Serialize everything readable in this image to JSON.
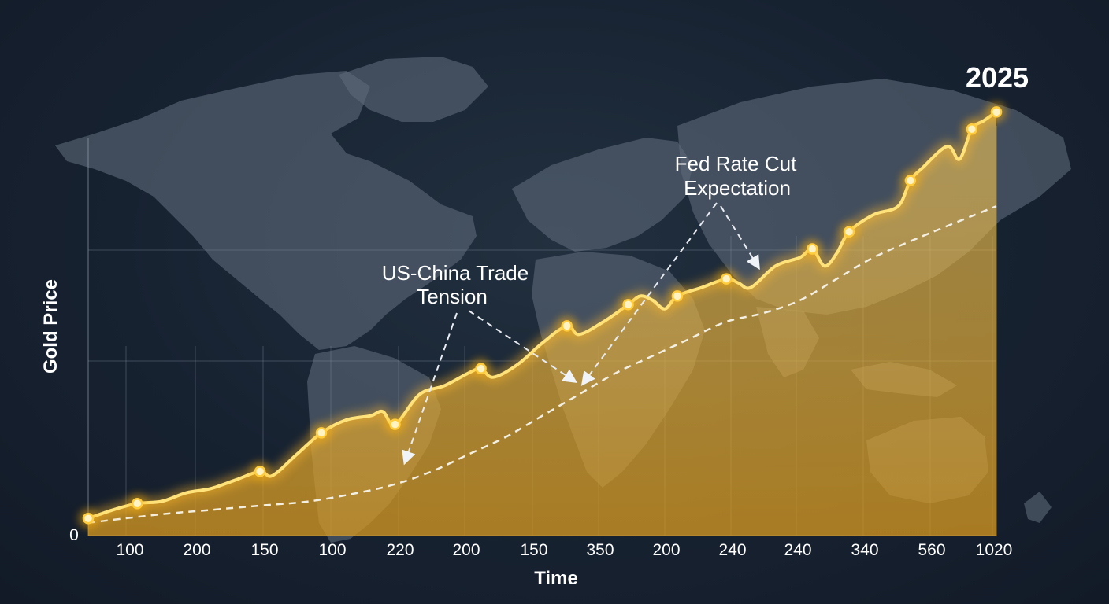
{
  "chart_data": {
    "type": "line",
    "title": "",
    "xlabel": "Time",
    "ylabel": "Gold Price",
    "x_tick_labels": [
      "100",
      "200",
      "150",
      "100",
      "220",
      "200",
      "150",
      "350",
      "200",
      "240",
      "240",
      "340",
      "560",
      "1020"
    ],
    "y_tick_labels": [
      "0"
    ],
    "ylim": [
      0,
      100
    ],
    "grid": true,
    "series": [
      {
        "values": [
          4,
          6,
          7.5,
          8,
          10,
          11,
          13,
          15,
          14,
          19,
          24,
          27,
          28,
          29,
          26,
          33,
          35,
          38,
          39,
          37,
          40,
          45,
          49,
          47,
          50,
          54,
          56,
          55,
          53,
          56,
          58,
          60,
          59,
          58,
          63,
          65,
          67,
          63,
          66,
          71,
          75,
          77,
          83,
          86,
          91,
          88,
          95,
          97,
          99
        ],
        "x": [
          0,
          2,
          4,
          6,
          8,
          10,
          12,
          14,
          15,
          17,
          19,
          21,
          23,
          24,
          25,
          27,
          29,
          31,
          32,
          33,
          35,
          37,
          39,
          40,
          42,
          44,
          45,
          46,
          47,
          48,
          50,
          52,
          53,
          54,
          56,
          58,
          59,
          60,
          61,
          62,
          64,
          66,
          67,
          68,
          70,
          71,
          72,
          73,
          74
        ],
        "markers": [
          0,
          2,
          7,
          10,
          14,
          18,
          22,
          25,
          29,
          31,
          36,
          39,
          42,
          46,
          48
        ]
      },
      {
        "values": [
          3,
          5,
          6,
          7,
          8,
          10,
          12,
          15,
          19,
          23,
          28,
          33,
          38,
          42,
          46,
          50,
          52,
          55,
          60,
          65,
          70,
          77
        ],
        "x": [
          0,
          6,
          10,
          14,
          18,
          22,
          25,
          28,
          31,
          34,
          37,
          40,
          43,
          46,
          49,
          52,
          55,
          58,
          61,
          64,
          68,
          74
        ],
        "style": "dashed"
      }
    ],
    "annotations": [
      {
        "text": "US-China Trade",
        "text2": "Tension"
      },
      {
        "text": "Fed Rate Cut",
        "text2": "Expectation"
      },
      {
        "text": "2025"
      }
    ]
  }
}
